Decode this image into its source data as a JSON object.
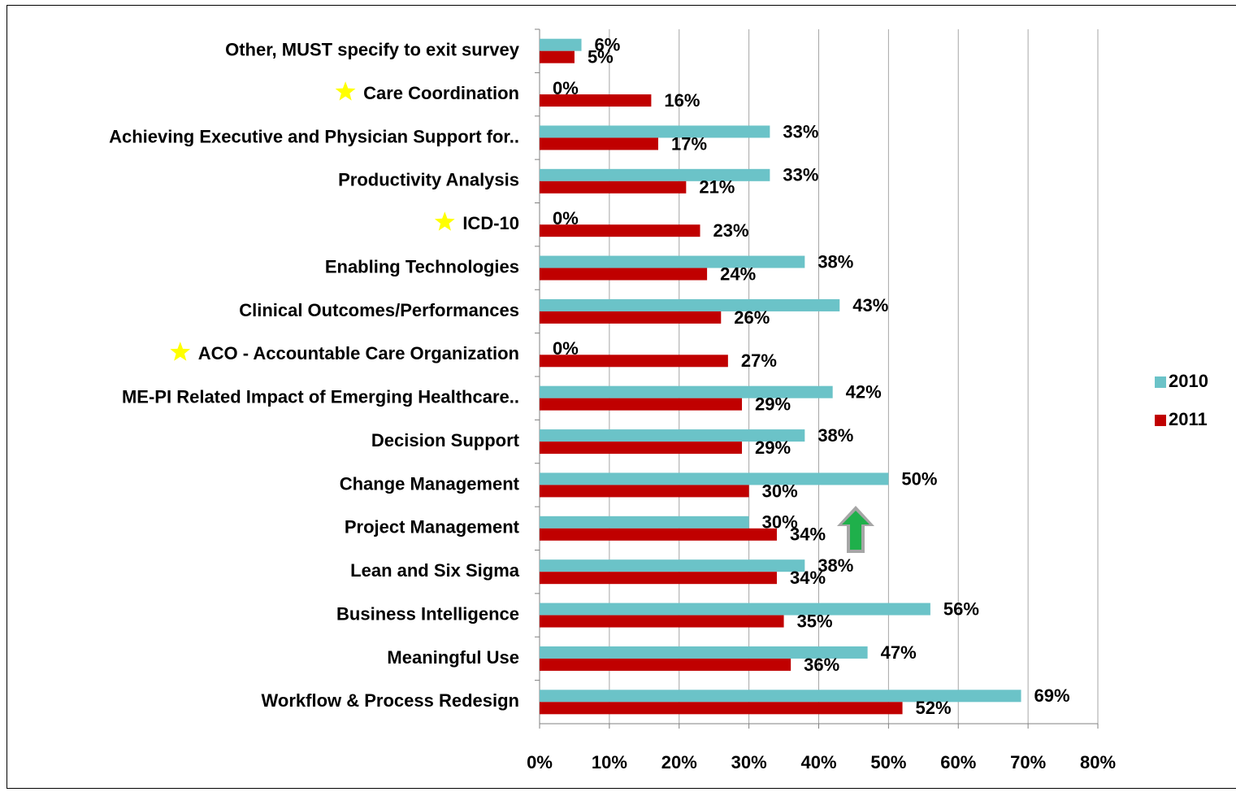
{
  "chart_data": {
    "type": "bar",
    "orientation": "horizontal",
    "categories": [
      "Other, MUST specify to exit survey",
      "Care Coordination",
      "Achieving Executive and Physician Support for..",
      "Productivity Analysis",
      "ICD-10",
      "Enabling Technologies",
      "Clinical Outcomes/Performances",
      "ACO - Accountable Care Organization",
      "ME-PI Related Impact of Emerging Healthcare..",
      "Decision Support",
      "Change Management",
      "Project Management",
      "Lean and Six Sigma",
      "Business Intelligence",
      "Meaningful Use",
      "Workflow & Process Redesign"
    ],
    "series": [
      {
        "name": "2010",
        "color": "#6bc3c8",
        "values": [
          6,
          0,
          33,
          33,
          0,
          38,
          43,
          0,
          42,
          38,
          50,
          30,
          38,
          56,
          47,
          69
        ],
        "value_labels": [
          "6%",
          "0%",
          "33%",
          "33%",
          "0%",
          "38%",
          "43%",
          "0%",
          "42%",
          "38%",
          "50%",
          "30%",
          "38%",
          "56%",
          "47%",
          "69%"
        ]
      },
      {
        "name": "2011",
        "color": "#c00000",
        "values": [
          5,
          16,
          17,
          21,
          23,
          24,
          26,
          27,
          29,
          29,
          30,
          34,
          34,
          35,
          36,
          52
        ],
        "value_labels": [
          "5%",
          "16%",
          "17%",
          "21%",
          "23%",
          "24%",
          "26%",
          "27%",
          "29%",
          "29%",
          "30%",
          "34%",
          "34%",
          "35%",
          "36%",
          "52%"
        ]
      }
    ],
    "xlim": [
      0,
      80
    ],
    "xticks": [
      {
        "value": 0,
        "label": "0%"
      },
      {
        "value": 10,
        "label": "10%"
      },
      {
        "value": 20,
        "label": "20%"
      },
      {
        "value": 30,
        "label": "30%"
      },
      {
        "value": 40,
        "label": "40%"
      },
      {
        "value": 50,
        "label": "50%"
      },
      {
        "value": 60,
        "label": "60%"
      },
      {
        "value": 70,
        "label": "70%"
      },
      {
        "value": 80,
        "label": "80%"
      }
    ],
    "grid": true,
    "legend": "right"
  }
}
